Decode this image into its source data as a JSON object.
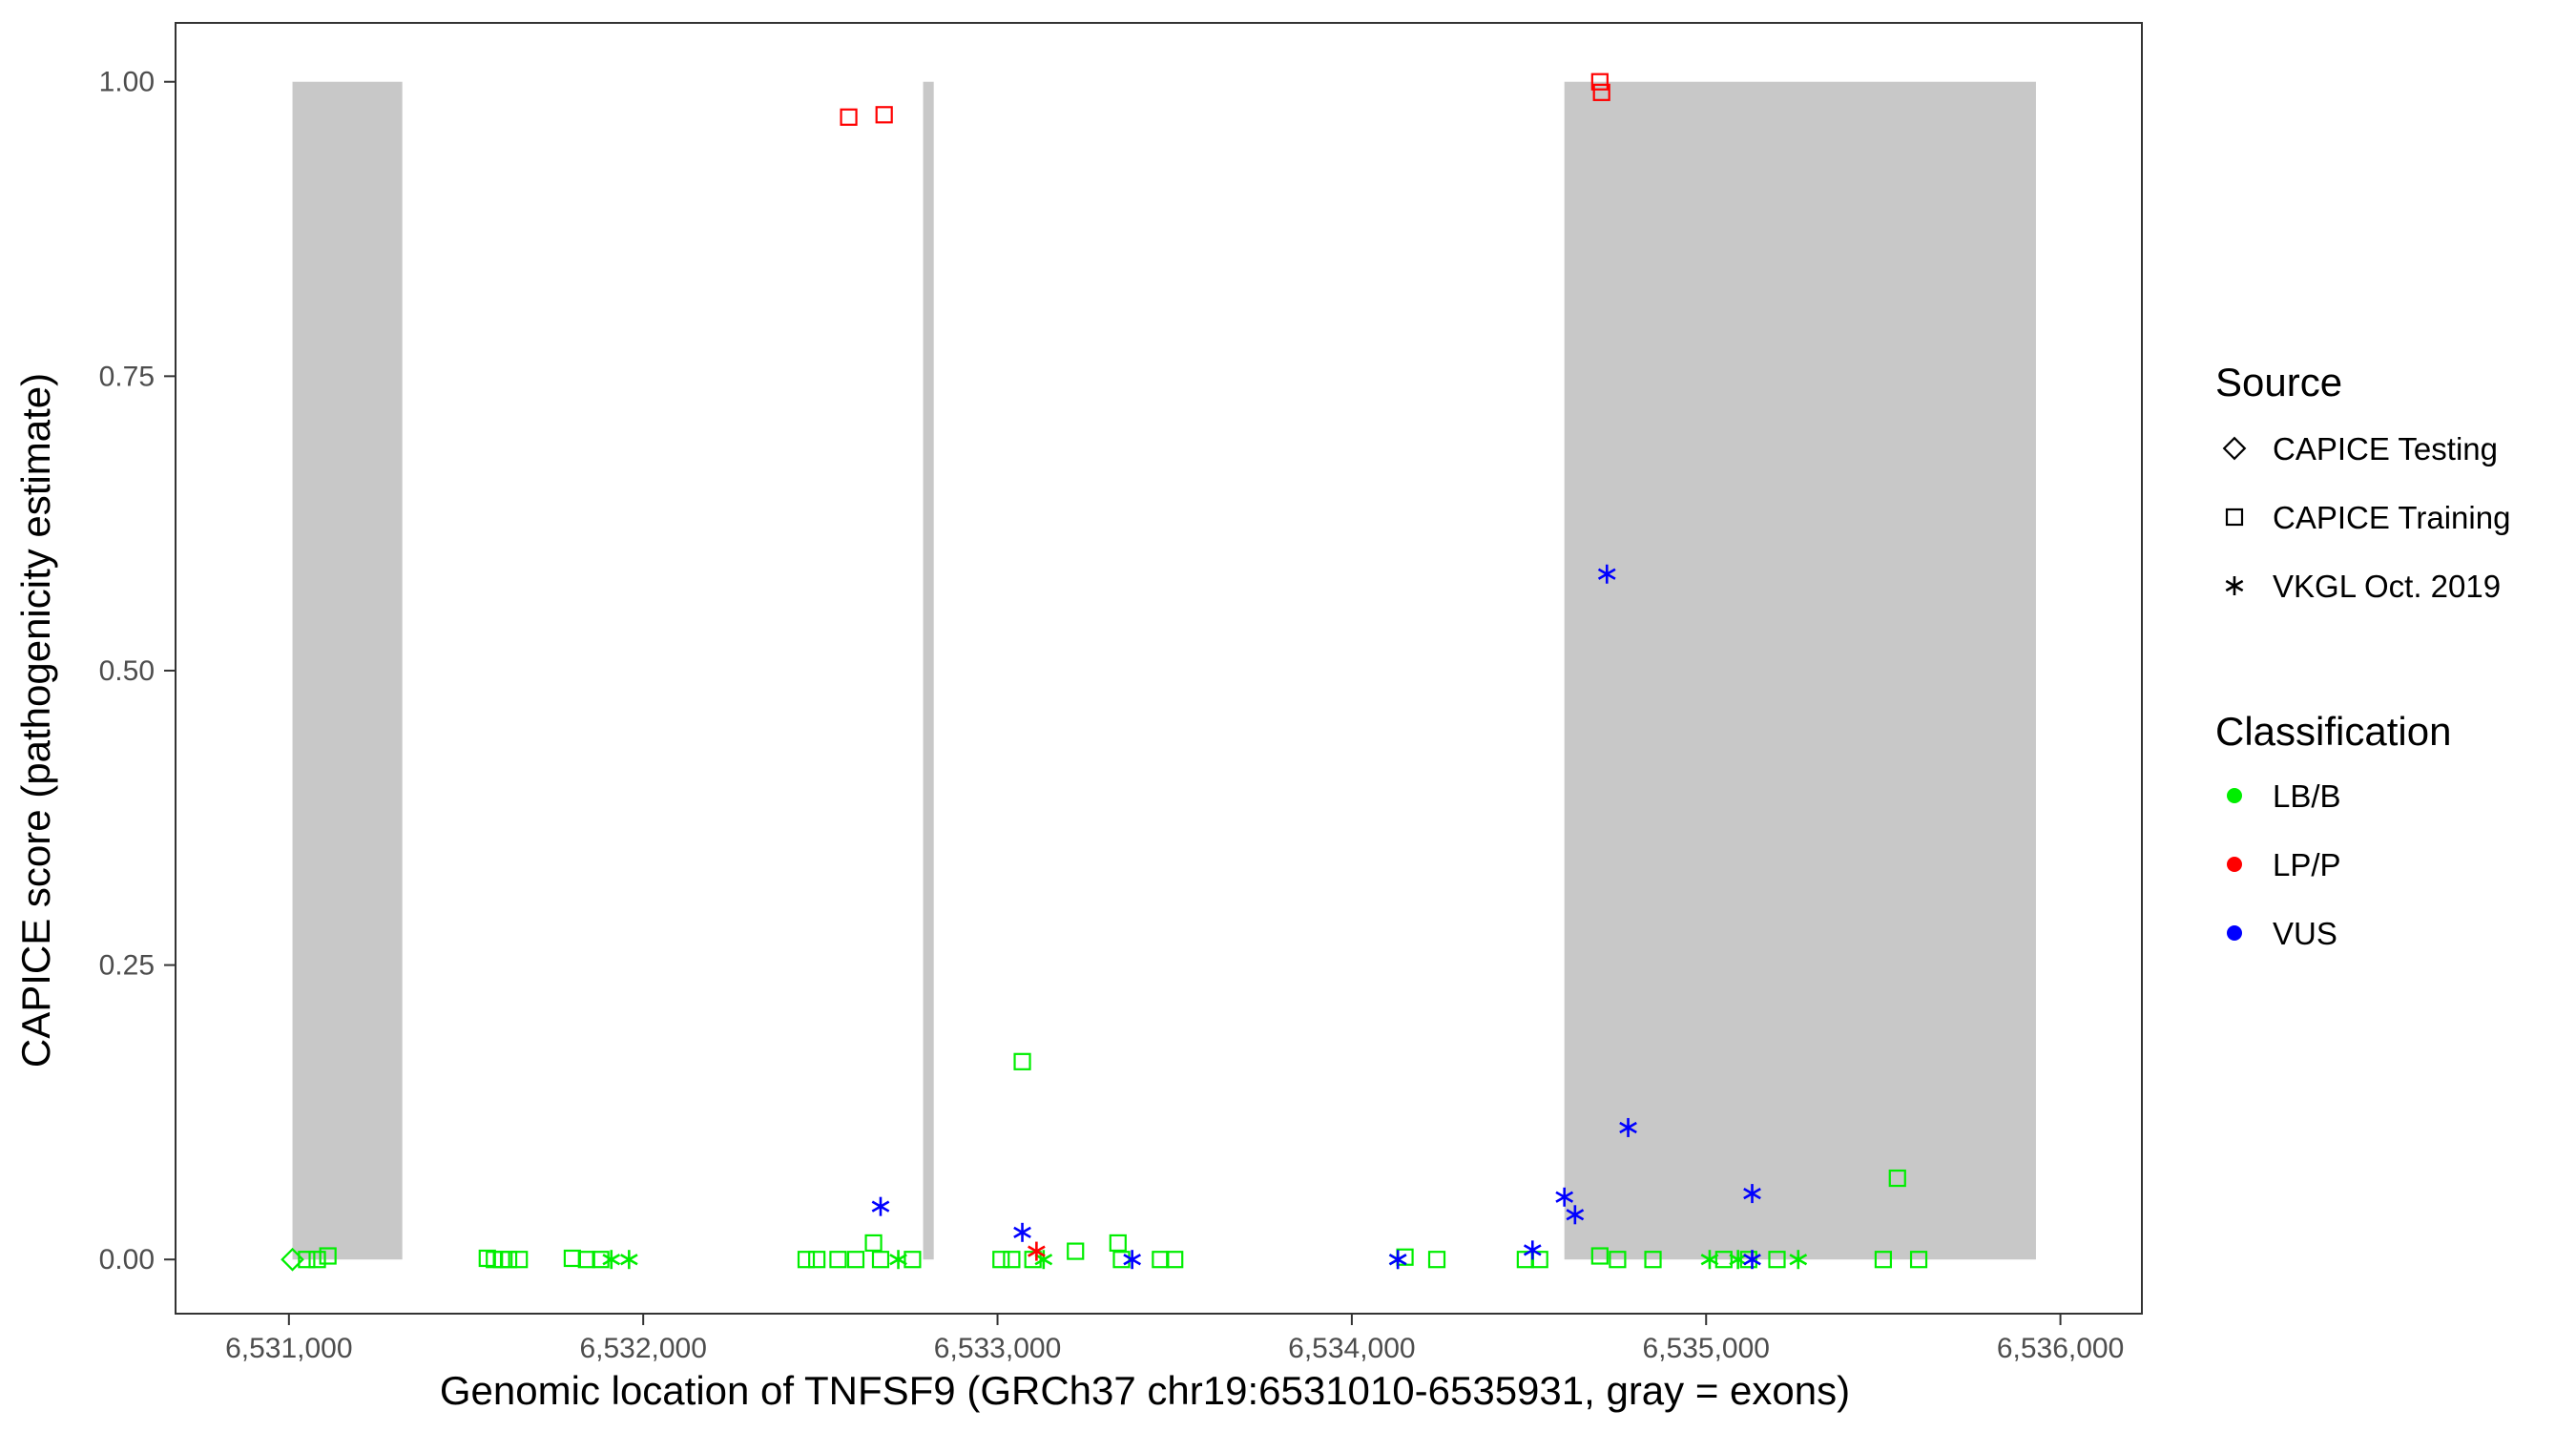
{
  "chart_data": {
    "type": "scatter",
    "xlabel": "Genomic location of TNFSF9 (GRCh37 chr19:6531010-6535931, gray = exons)",
    "ylabel": "CAPICE score (pathogenicity estimate)",
    "xlim": [
      6530680,
      6536230
    ],
    "ylim": [
      -0.046,
      1.05
    ],
    "x_ticks": [
      6531000,
      6532000,
      6533000,
      6534000,
      6535000,
      6536000
    ],
    "x_tick_labels": [
      "6,531,000",
      "6,532,000",
      "6,533,000",
      "6,534,000",
      "6,535,000",
      "6,536,000"
    ],
    "y_ticks": [
      0,
      0.25,
      0.5,
      0.75,
      1.0
    ],
    "y_tick_labels": [
      "0.00",
      "0.25",
      "0.50",
      "0.75",
      "1.00"
    ],
    "grid": false,
    "exons": [
      {
        "start": 6531010,
        "end": 6531320
      },
      {
        "start": 6532790,
        "end": 6532820
      },
      {
        "start": 6534600,
        "end": 6535931
      }
    ],
    "exon_color": "#c8c8c8",
    "legend_position": "right",
    "legend": {
      "source_title": "Source",
      "source_items": [
        {
          "label": "CAPICE Testing",
          "shape": "diamond"
        },
        {
          "label": "CAPICE Training",
          "shape": "square"
        },
        {
          "label": "VKGL Oct. 2019",
          "shape": "asterisk"
        }
      ],
      "class_title": "Classification",
      "class_items": [
        {
          "label": "LB/B",
          "color": "#00ee00"
        },
        {
          "label": "LP/P",
          "color": "#ff0000"
        },
        {
          "label": "VUS",
          "color": "#0000ff"
        }
      ]
    },
    "colors": {
      "LB/B": "#00ee00",
      "LP/P": "#ff0000",
      "VUS": "#0000ff"
    },
    "points": [
      {
        "x": 6531010,
        "y": 0.0,
        "shape": "diamond",
        "class": "LB/B"
      },
      {
        "x": 6531050,
        "y": 0.0,
        "shape": "square",
        "class": "LB/B"
      },
      {
        "x": 6531080,
        "y": 0.0,
        "shape": "square",
        "class": "LB/B"
      },
      {
        "x": 6531110,
        "y": 0.003,
        "shape": "square",
        "class": "LB/B"
      },
      {
        "x": 6531560,
        "y": 0.001,
        "shape": "square",
        "class": "LB/B"
      },
      {
        "x": 6531580,
        "y": 0.0,
        "shape": "square",
        "class": "LB/B"
      },
      {
        "x": 6531600,
        "y": 0.0,
        "shape": "square",
        "class": "LB/B"
      },
      {
        "x": 6531620,
        "y": 0.0,
        "shape": "square",
        "class": "LB/B"
      },
      {
        "x": 6531650,
        "y": 0.0,
        "shape": "square",
        "class": "LB/B"
      },
      {
        "x": 6531800,
        "y": 0.001,
        "shape": "square",
        "class": "LB/B"
      },
      {
        "x": 6531840,
        "y": 0.0,
        "shape": "square",
        "class": "LB/B"
      },
      {
        "x": 6531880,
        "y": 0.0,
        "shape": "square",
        "class": "LB/B"
      },
      {
        "x": 6531910,
        "y": 0.0,
        "shape": "asterisk",
        "class": "LB/B"
      },
      {
        "x": 6531960,
        "y": 0.0,
        "shape": "asterisk",
        "class": "LB/B"
      },
      {
        "x": 6532460,
        "y": 0.0,
        "shape": "square",
        "class": "LB/B"
      },
      {
        "x": 6532490,
        "y": 0.0,
        "shape": "square",
        "class": "LB/B"
      },
      {
        "x": 6532550,
        "y": 0.0,
        "shape": "square",
        "class": "LB/B"
      },
      {
        "x": 6532600,
        "y": 0.0,
        "shape": "square",
        "class": "LB/B"
      },
      {
        "x": 6532650,
        "y": 0.014,
        "shape": "square",
        "class": "LB/B"
      },
      {
        "x": 6532670,
        "y": 0.0,
        "shape": "square",
        "class": "LB/B"
      },
      {
        "x": 6532720,
        "y": 0.0,
        "shape": "asterisk",
        "class": "LB/B"
      },
      {
        "x": 6532760,
        "y": 0.0,
        "shape": "square",
        "class": "LB/B"
      },
      {
        "x": 6532580,
        "y": 0.97,
        "shape": "square",
        "class": "LP/P"
      },
      {
        "x": 6532680,
        "y": 0.972,
        "shape": "square",
        "class": "LP/P"
      },
      {
        "x": 6532670,
        "y": 0.045,
        "shape": "asterisk",
        "class": "VUS"
      },
      {
        "x": 6533010,
        "y": 0.0,
        "shape": "square",
        "class": "LB/B"
      },
      {
        "x": 6533040,
        "y": 0.0,
        "shape": "square",
        "class": "LB/B"
      },
      {
        "x": 6533070,
        "y": 0.168,
        "shape": "square",
        "class": "LB/B"
      },
      {
        "x": 6533100,
        "y": 0.0,
        "shape": "square",
        "class": "LB/B"
      },
      {
        "x": 6533130,
        "y": 0.0,
        "shape": "asterisk",
        "class": "LB/B"
      },
      {
        "x": 6533070,
        "y": 0.023,
        "shape": "asterisk",
        "class": "VUS"
      },
      {
        "x": 6533110,
        "y": 0.007,
        "shape": "asterisk",
        "class": "LP/P"
      },
      {
        "x": 6533220,
        "y": 0.007,
        "shape": "square",
        "class": "LB/B"
      },
      {
        "x": 6533340,
        "y": 0.014,
        "shape": "square",
        "class": "LB/B"
      },
      {
        "x": 6533350,
        "y": 0.0,
        "shape": "square",
        "class": "LB/B"
      },
      {
        "x": 6533380,
        "y": 0.0,
        "shape": "asterisk",
        "class": "VUS"
      },
      {
        "x": 6533460,
        "y": 0.0,
        "shape": "square",
        "class": "LB/B"
      },
      {
        "x": 6533500,
        "y": 0.0,
        "shape": "square",
        "class": "LB/B"
      },
      {
        "x": 6534130,
        "y": 0.0,
        "shape": "asterisk",
        "class": "LB/B"
      },
      {
        "x": 6534150,
        "y": 0.002,
        "shape": "square",
        "class": "LB/B"
      },
      {
        "x": 6534240,
        "y": 0.0,
        "shape": "square",
        "class": "LB/B"
      },
      {
        "x": 6534130,
        "y": 0.0,
        "shape": "asterisk",
        "class": "VUS"
      },
      {
        "x": 6534490,
        "y": 0.0,
        "shape": "square",
        "class": "LB/B"
      },
      {
        "x": 6534530,
        "y": 0.0,
        "shape": "square",
        "class": "LB/B"
      },
      {
        "x": 6534510,
        "y": 0.008,
        "shape": "asterisk",
        "class": "VUS"
      },
      {
        "x": 6534600,
        "y": 0.053,
        "shape": "asterisk",
        "class": "VUS"
      },
      {
        "x": 6534630,
        "y": 0.038,
        "shape": "asterisk",
        "class": "VUS"
      },
      {
        "x": 6534700,
        "y": 1.0,
        "shape": "square",
        "class": "LP/P"
      },
      {
        "x": 6534705,
        "y": 0.991,
        "shape": "square",
        "class": "LP/P"
      },
      {
        "x": 6534720,
        "y": 0.582,
        "shape": "asterisk",
        "class": "VUS"
      },
      {
        "x": 6534780,
        "y": 0.112,
        "shape": "asterisk",
        "class": "VUS"
      },
      {
        "x": 6534700,
        "y": 0.003,
        "shape": "square",
        "class": "LB/B"
      },
      {
        "x": 6534750,
        "y": 0.0,
        "shape": "square",
        "class": "LB/B"
      },
      {
        "x": 6534850,
        "y": 0.0,
        "shape": "square",
        "class": "LB/B"
      },
      {
        "x": 6535010,
        "y": 0.0,
        "shape": "asterisk",
        "class": "LB/B"
      },
      {
        "x": 6535050,
        "y": 0.0,
        "shape": "square",
        "class": "LB/B"
      },
      {
        "x": 6535090,
        "y": 0.0,
        "shape": "asterisk",
        "class": "LB/B"
      },
      {
        "x": 6535120,
        "y": 0.0,
        "shape": "square",
        "class": "LB/B"
      },
      {
        "x": 6535200,
        "y": 0.0,
        "shape": "square",
        "class": "LB/B"
      },
      {
        "x": 6535260,
        "y": 0.0,
        "shape": "asterisk",
        "class": "LB/B"
      },
      {
        "x": 6535130,
        "y": 0.056,
        "shape": "asterisk",
        "class": "VUS"
      },
      {
        "x": 6535130,
        "y": 0.0,
        "shape": "asterisk",
        "class": "VUS"
      },
      {
        "x": 6535500,
        "y": 0.0,
        "shape": "square",
        "class": "LB/B"
      },
      {
        "x": 6535540,
        "y": 0.069,
        "shape": "square",
        "class": "LB/B"
      },
      {
        "x": 6535600,
        "y": 0.0,
        "shape": "square",
        "class": "LB/B"
      }
    ]
  }
}
